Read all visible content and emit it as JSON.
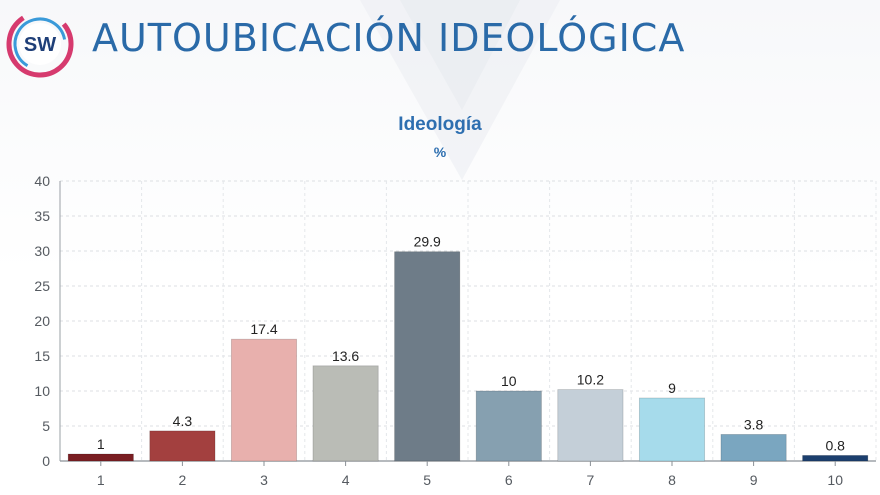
{
  "header": {
    "logo_text": "SW",
    "title": "AUTOUBICACIÓN IDEOLÓGICA"
  },
  "colors": {
    "title": "#2a6aa8",
    "logo_ring_pink": "#d63a6e",
    "logo_ring_blue": "#3a9ad9",
    "logo_text": "#1f3f78"
  },
  "chart_data": {
    "type": "bar",
    "title": "Ideología",
    "subtitle": "%",
    "xlabel": "",
    "ylabel": "",
    "categories": [
      "1",
      "2",
      "3",
      "4",
      "5",
      "6",
      "7",
      "8",
      "9",
      "10"
    ],
    "values": [
      1,
      4.3,
      17.4,
      13.6,
      29.9,
      10,
      10.2,
      9,
      3.8,
      0.8
    ],
    "value_labels": [
      "1",
      "4.3",
      "17.4",
      "13.6",
      "29.9",
      "10",
      "10.2",
      "9",
      "3.8",
      "0.8"
    ],
    "bar_colors": [
      "#7a1e22",
      "#a3403f",
      "#e8b0ad",
      "#babcb6",
      "#6e7c88",
      "#86a0b0",
      "#c4cfd8",
      "#a6dbeb",
      "#7aa6c0",
      "#1c3f6e"
    ],
    "ylim": [
      0,
      40
    ],
    "yticks": [
      0,
      5,
      10,
      15,
      20,
      25,
      30,
      35,
      40
    ],
    "grid": true,
    "legend": "none"
  }
}
